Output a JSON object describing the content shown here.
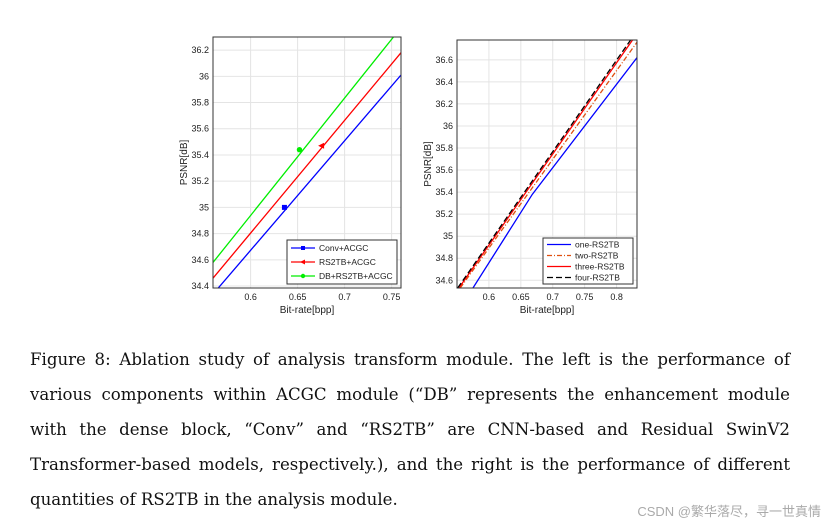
{
  "chart_data": [
    {
      "type": "line",
      "xlabel": "Bit-rate[bpp]",
      "ylabel": "PSNR[dB]",
      "xlim": [
        0.56,
        0.76
      ],
      "ylim": [
        34.385,
        36.3
      ],
      "xticks": [
        0.6,
        0.65,
        0.7,
        0.75
      ],
      "xtick_labels": [
        "0.6",
        "0.65",
        "0.7",
        "0.75"
      ],
      "yticks": [
        34.4,
        34.6,
        34.8,
        35,
        35.2,
        35.4,
        35.6,
        35.8,
        36,
        36.2
      ],
      "ytick_labels": [
        "34.4",
        "34.6",
        "34.8",
        "35",
        "35.2",
        "35.4",
        "35.6",
        "35.8",
        "36",
        "36.2"
      ],
      "grid": true,
      "legend": "bottom-right",
      "series": [
        {
          "name": "Conv+ACGC",
          "color": "#0000ff",
          "dash": "",
          "marker": "square",
          "x": [
            0.565,
            0.76
          ],
          "y": [
            34.38,
            36.01
          ],
          "marker_point": [
            0.636,
            35.0
          ]
        },
        {
          "name": "RS2TB+ACGC",
          "color": "#ff0000",
          "dash": "",
          "marker": "triangle-left",
          "x": [
            0.56,
            0.76
          ],
          "y": [
            34.46,
            36.18
          ],
          "marker_point": [
            0.675,
            35.47
          ]
        },
        {
          "name": "DB+RS2TB+ACGC",
          "color": "#00ee00",
          "dash": "",
          "marker": "circle",
          "x": [
            0.56,
            0.752
          ],
          "y": [
            34.58,
            36.3
          ],
          "marker_point": [
            0.652,
            35.44
          ]
        }
      ]
    },
    {
      "type": "line",
      "xlabel": "Bit-rate[bpp]",
      "ylabel": "PSNR[dB]",
      "xlim": [
        0.55,
        0.832
      ],
      "ylim": [
        34.53,
        36.78
      ],
      "xticks": [
        0.6,
        0.65,
        0.7,
        0.75,
        0.8
      ],
      "xtick_labels": [
        "0.6",
        "0.65",
        "0.7",
        "0.75",
        "0.8"
      ],
      "yticks": [
        34.6,
        34.8,
        35,
        35.2,
        35.4,
        35.6,
        35.8,
        36,
        36.2,
        36.4,
        36.6
      ],
      "ytick_labels": [
        "34.6",
        "34.8",
        "35",
        "35.2",
        "35.4",
        "35.6",
        "35.8",
        "36",
        "36.2",
        "36.4",
        "36.6"
      ],
      "grid": true,
      "legend": "bottom-right",
      "series": [
        {
          "name": "one-RS2TB",
          "color": "#0000ff",
          "dash": "",
          "x": [
            0.575,
            0.668,
            0.832
          ],
          "y": [
            34.53,
            35.38,
            36.62
          ]
        },
        {
          "name": "two-RS2TB",
          "color": "#e05010",
          "dash": "5,2,1,2",
          "x": [
            0.555,
            0.832
          ],
          "y": [
            34.53,
            36.76
          ]
        },
        {
          "name": "three-RS2TB",
          "color": "#ff0000",
          "dash": "",
          "x": [
            0.553,
            0.825
          ],
          "y": [
            34.53,
            36.78
          ]
        },
        {
          "name": "four-RS2TB",
          "color": "#000000",
          "dash": "6,3",
          "x": [
            0.551,
            0.822
          ],
          "y": [
            34.53,
            36.78
          ]
        }
      ]
    }
  ],
  "caption": "Figure 8: Ablation study of analysis transform module. The left is the performance of various components within ACGC module (“DB” represents the enhancement module with the dense block, “Conv” and “RS2TB” are CNN-based and Residual SwinV2 Transformer-based models, respectively.), and the right is the performance of different quantities of RS2TB in the analysis module.",
  "watermark": "CSDN @繁华落尽，寻一世真情"
}
